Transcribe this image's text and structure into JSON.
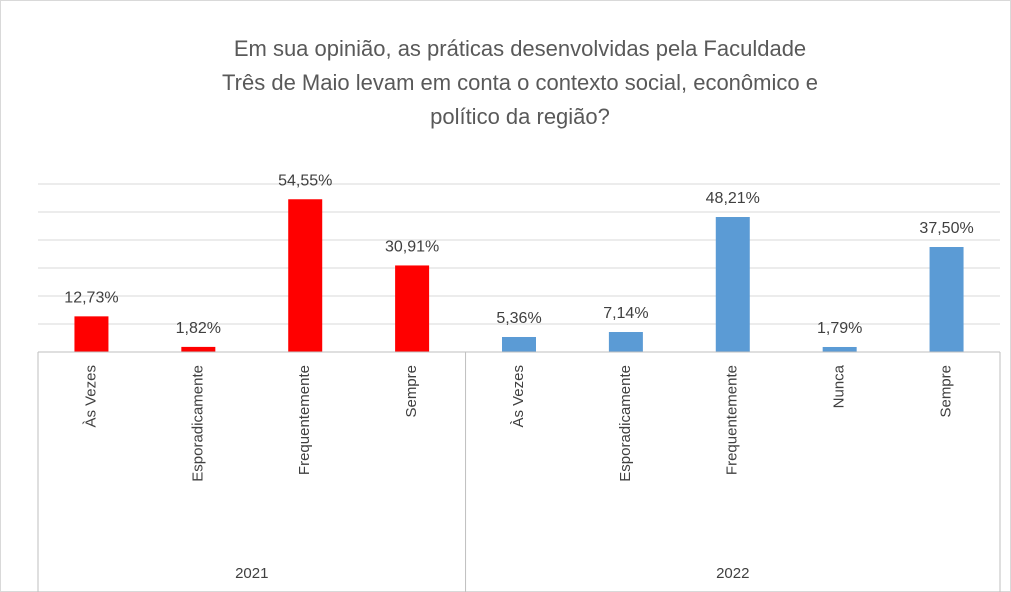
{
  "chart_data": {
    "type": "bar",
    "title": [
      "Em sua opinião, as práticas desenvolvidas pela Faculdade",
      "Três de Maio levam em conta o contexto social, econômico e",
      "político da região?"
    ],
    "groups": [
      {
        "name": "2021",
        "color": "#ff0000",
        "categories": [
          "Às Vezes",
          "Esporadicamente",
          "Frequentemente",
          "Sempre"
        ],
        "values": [
          12.73,
          1.82,
          54.55,
          30.91
        ],
        "value_labels": [
          "12,73%",
          "1,82%",
          "54,55%",
          "30,91%"
        ]
      },
      {
        "name": "2022",
        "color": "#5b9bd5",
        "categories": [
          "Às Vezes",
          "Esporadicamente",
          "Frequentemente",
          "Nunca",
          "Sempre"
        ],
        "values": [
          5.36,
          7.14,
          48.21,
          1.79,
          37.5
        ],
        "value_labels": [
          "5,36%",
          "7,14%",
          "48,21%",
          "1,79%",
          "37,50%"
        ]
      }
    ],
    "ylim": [
      0,
      60
    ],
    "yticks": [
      0,
      10,
      20,
      30,
      40,
      50,
      60
    ],
    "grid": true
  }
}
